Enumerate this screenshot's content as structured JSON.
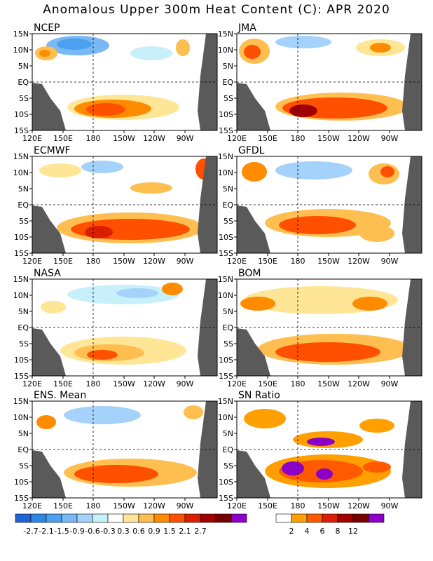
{
  "title": "Anomalous Upper 300m Heat Content (C): APR 2020",
  "panels": [
    {
      "name": "NCEP"
    },
    {
      "name": "JMA"
    },
    {
      "name": "ECMWF"
    },
    {
      "name": "GFDL"
    },
    {
      "name": "NASA"
    },
    {
      "name": "BOM"
    },
    {
      "name": "ENS. Mean"
    },
    {
      "name": "SN Ratio"
    }
  ],
  "axes": {
    "x_ticks": [
      "120E",
      "150E",
      "180",
      "150W",
      "120W",
      "90W"
    ],
    "y_ticks": [
      "15N",
      "10N",
      "5N",
      "EQ",
      "5S",
      "10S",
      "15S"
    ]
  },
  "anomaly_colorbar": {
    "colors": [
      "#1e64d6",
      "#2d87e6",
      "#4ba0f0",
      "#78b9f5",
      "#a5d2fa",
      "#c8f0fa",
      "#ffffff",
      "#ffe696",
      "#ffbe50",
      "#ff8c00",
      "#ff5000",
      "#dc1e00",
      "#a00000",
      "#780000",
      "#8c00c8"
    ],
    "labels": [
      "-2.7",
      "-2.1",
      "-1.5",
      "-0.9",
      "-0.6",
      "-0.3",
      "0.3",
      "0.6",
      "0.9",
      "1.5",
      "2.1",
      "2.7"
    ]
  },
  "snr_colorbar": {
    "colors": [
      "#ffffff",
      "#ffa000",
      "#ff5a00",
      "#dc1e00",
      "#a00000",
      "#780000",
      "#8c00c8"
    ],
    "labels": [
      "2",
      "4",
      "6",
      "8",
      "12"
    ]
  },
  "chart_data": {
    "type": "heatmap",
    "title": "Anomalous Upper 300m Heat Content (C): APR 2020",
    "x_range": [
      "120E",
      "80W"
    ],
    "y_range": [
      "15S",
      "15N"
    ],
    "reference_lines": [
      "EQ",
      "180"
    ],
    "units": "C",
    "regions": [
      {
        "panel": "NCEP",
        "feature": "warm band south of equator",
        "lon": "150E-150W",
        "lat": "5S-12S",
        "value_approx": 1.5
      },
      {
        "panel": "NCEP",
        "feature": "cool patch north",
        "lon": "150E-180",
        "lat": "10N-15N",
        "value_approx": -0.9
      },
      {
        "panel": "JMA",
        "feature": "warm band south of equator",
        "lon": "160E-130W",
        "lat": "5S-12S",
        "value_approx": 2.1
      },
      {
        "panel": "ECMWF",
        "feature": "warm band south of equator",
        "lon": "160E-110W",
        "lat": "5S-12S",
        "value_approx": 1.5
      },
      {
        "panel": "GFDL",
        "feature": "warm band south of equator",
        "lon": "160E-150W",
        "lat": "4S-11S",
        "value_approx": 1.5
      },
      {
        "panel": "NASA",
        "feature": "warm band south of equator",
        "lon": "150E-170W",
        "lat": "5S-12S",
        "value_approx": 0.9
      },
      {
        "panel": "BOM",
        "feature": "warm band south of equator",
        "lon": "160E-120W",
        "lat": "4S-12S",
        "value_approx": 0.9
      },
      {
        "panel": "ENS. Mean",
        "feature": "warm band south of equator",
        "lon": "160E-150W",
        "lat": "5S-12S",
        "value_approx": 1.5
      },
      {
        "panel": "SN Ratio",
        "feature": "high signal-to-noise",
        "lon": "170E-130W",
        "lat": "3S-12S",
        "value_approx": 8
      }
    ]
  }
}
